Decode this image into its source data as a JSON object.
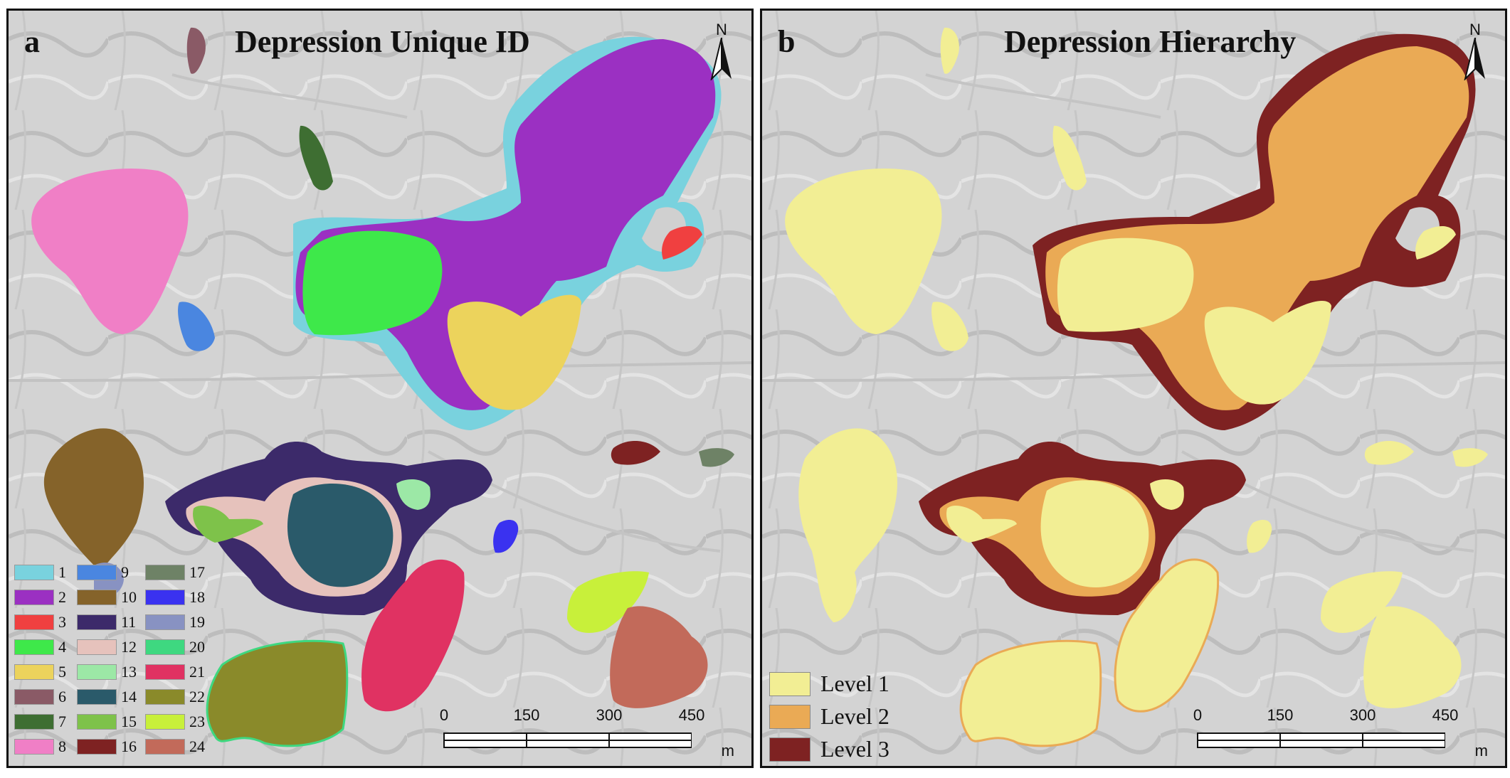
{
  "figure": {
    "panel_a": {
      "letter": "a",
      "title": "Depression Unique ID",
      "north_label": "N",
      "scale": {
        "ticks": [
          "0",
          "150",
          "300",
          "450"
        ],
        "unit": "m"
      },
      "legend": [
        {
          "id": "1",
          "color": "#79d2de"
        },
        {
          "id": "2",
          "color": "#9b30c2"
        },
        {
          "id": "3",
          "color": "#f04040"
        },
        {
          "id": "4",
          "color": "#3ee84a"
        },
        {
          "id": "5",
          "color": "#ecd35c"
        },
        {
          "id": "6",
          "color": "#8a5a66"
        },
        {
          "id": "7",
          "color": "#3e6e32"
        },
        {
          "id": "8",
          "color": "#f07fc6"
        },
        {
          "id": "9",
          "color": "#4a86e0"
        },
        {
          "id": "10",
          "color": "#85632a"
        },
        {
          "id": "11",
          "color": "#3c2a6a"
        },
        {
          "id": "12",
          "color": "#e6c2bc"
        },
        {
          "id": "13",
          "color": "#9ce8a6"
        },
        {
          "id": "14",
          "color": "#2a5a6a"
        },
        {
          "id": "15",
          "color": "#7ec24a"
        },
        {
          "id": "16",
          "color": "#7e2222"
        },
        {
          "id": "17",
          "color": "#6e8266"
        },
        {
          "id": "18",
          "color": "#3a32f0"
        },
        {
          "id": "19",
          "color": "#8892c2"
        },
        {
          "id": "20",
          "color": "#3ed880"
        },
        {
          "id": "21",
          "color": "#e03262"
        },
        {
          "id": "22",
          "color": "#8a8a2a"
        },
        {
          "id": "23",
          "color": "#c8f03a"
        },
        {
          "id": "24",
          "color": "#c26a5a"
        }
      ]
    },
    "panel_b": {
      "letter": "b",
      "title": "Depression Hierarchy",
      "north_label": "N",
      "scale": {
        "ticks": [
          "0",
          "150",
          "300",
          "450"
        ],
        "unit": "m"
      },
      "legend": [
        {
          "label": "Level 1",
          "color": "#f2ee94"
        },
        {
          "label": "Level 2",
          "color": "#eaaa55"
        },
        {
          "label": "Level 3",
          "color": "#7e2222"
        }
      ]
    }
  }
}
